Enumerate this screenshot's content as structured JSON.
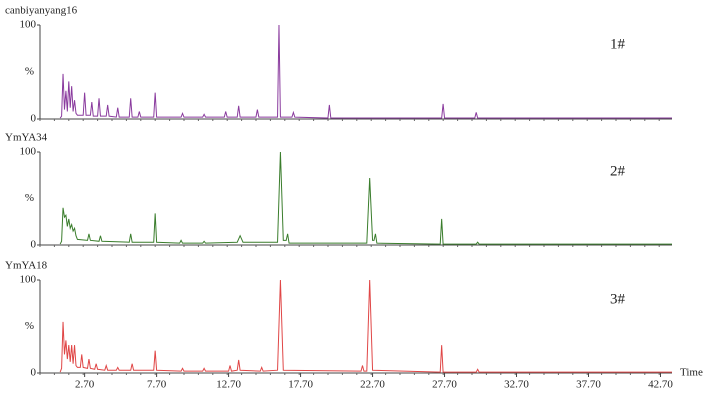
{
  "chart_data": [
    {
      "type": "line",
      "title": "canbiyanyang16",
      "label": "1#",
      "color": "#8a3b9e",
      "ylabel": "%",
      "xlim": [
        -0.4,
        43.5
      ],
      "ylim": [
        0,
        100
      ],
      "yticks": [
        0,
        100
      ],
      "x": [
        1.0,
        1.1,
        1.2,
        1.3,
        1.4,
        1.5,
        1.6,
        1.7,
        1.8,
        1.9,
        2.0,
        2.1,
        2.2,
        2.6,
        2.7,
        2.8,
        3.1,
        3.2,
        3.3,
        3.6,
        3.7,
        3.8,
        4.2,
        4.3,
        4.4,
        4.9,
        5.0,
        5.1,
        5.8,
        5.9,
        6.0,
        6.4,
        6.5,
        6.6,
        7.5,
        7.6,
        7.7,
        9.4,
        9.5,
        9.6,
        10.9,
        11.0,
        11.1,
        12.4,
        12.5,
        12.6,
        13.3,
        13.4,
        13.5,
        14.6,
        14.7,
        14.8,
        16.1,
        16.2,
        16.3,
        17.1,
        17.2,
        17.3,
        19.6,
        19.7,
        19.8,
        27.5,
        27.6,
        27.7,
        29.8,
        29.9,
        30.0,
        43.5
      ],
      "values": [
        1,
        3,
        48,
        10,
        30,
        8,
        40,
        12,
        35,
        8,
        20,
        6,
        4,
        4,
        28,
        4,
        4,
        18,
        3,
        3,
        22,
        3,
        3,
        15,
        3,
        2,
        12,
        2,
        2,
        22,
        2,
        2,
        8,
        2,
        2,
        28,
        2,
        2,
        6,
        2,
        2,
        5,
        2,
        2,
        8,
        2,
        2,
        14,
        2,
        2,
        10,
        2,
        2,
        100,
        2,
        2,
        7,
        2,
        1,
        15,
        1,
        1,
        16,
        1,
        1,
        7,
        1,
        1
      ]
    },
    {
      "type": "line",
      "title": "YmYA34",
      "label": "2#",
      "color": "#3a7d2c",
      "ylabel": "%",
      "xlim": [
        -0.4,
        43.5
      ],
      "ylim": [
        0,
        100
      ],
      "yticks": [
        0,
        100
      ],
      "x": [
        1.0,
        1.1,
        1.2,
        1.3,
        1.4,
        1.5,
        1.6,
        1.7,
        1.8,
        1.9,
        2.0,
        2.1,
        2.2,
        2.9,
        3.0,
        3.1,
        3.7,
        3.8,
        3.9,
        5.8,
        5.9,
        6.0,
        7.5,
        7.6,
        7.7,
        9.3,
        9.4,
        9.5,
        10.9,
        11.0,
        11.1,
        13.3,
        13.5,
        13.7,
        16.1,
        16.3,
        16.5,
        16.7,
        16.8,
        16.9,
        22.3,
        22.5,
        22.7,
        22.8,
        22.9,
        23.0,
        27.4,
        27.5,
        27.6,
        29.9,
        30.0,
        30.1,
        43.5
      ],
      "values": [
        1,
        4,
        40,
        30,
        32,
        20,
        28,
        18,
        22,
        15,
        18,
        10,
        6,
        5,
        12,
        5,
        4,
        10,
        4,
        3,
        12,
        3,
        3,
        34,
        3,
        2,
        5,
        2,
        2,
        4,
        2,
        3,
        10,
        3,
        3,
        100,
        5,
        5,
        12,
        2,
        2,
        72,
        5,
        5,
        12,
        2,
        1,
        28,
        1,
        1,
        3,
        1,
        1
      ]
    },
    {
      "type": "line",
      "title": "YmYA18",
      "label": "3#",
      "color": "#e04646",
      "ylabel": "%",
      "xlim": [
        -0.4,
        43.5
      ],
      "ylim": [
        0,
        100
      ],
      "yticks": [
        0,
        100
      ],
      "xlabel": "Time",
      "xticks": [
        {
          "value": 2.7,
          "label": "2.70"
        },
        {
          "value": 7.7,
          "label": "7.70"
        },
        {
          "value": 12.7,
          "label": "12.70"
        },
        {
          "value": 17.7,
          "label": "17.70"
        },
        {
          "value": 22.7,
          "label": "22.70"
        },
        {
          "value": 27.7,
          "label": "27.70"
        },
        {
          "value": 32.7,
          "label": "32.70"
        },
        {
          "value": 37.7,
          "label": "37.70"
        },
        {
          "value": 42.7,
          "label": "42.70"
        }
      ],
      "x": [
        1.0,
        1.1,
        1.2,
        1.3,
        1.4,
        1.5,
        1.6,
        1.7,
        1.8,
        1.9,
        2.0,
        2.1,
        2.2,
        2.4,
        2.5,
        2.6,
        2.9,
        3.0,
        3.1,
        3.4,
        3.5,
        3.6,
        4.1,
        4.2,
        4.3,
        4.9,
        5.0,
        5.1,
        5.9,
        6.0,
        6.1,
        7.5,
        7.6,
        7.7,
        9.4,
        9.5,
        9.6,
        10.9,
        11.0,
        11.1,
        12.7,
        12.8,
        12.9,
        13.3,
        13.4,
        13.5,
        14.9,
        15.0,
        15.1,
        16.1,
        16.3,
        16.5,
        21.9,
        22.0,
        22.1,
        22.3,
        22.5,
        22.7,
        27.4,
        27.5,
        27.6,
        29.9,
        30.0,
        30.1,
        43.5
      ],
      "values": [
        1,
        5,
        55,
        20,
        35,
        15,
        30,
        12,
        30,
        10,
        30,
        8,
        6,
        6,
        20,
        6,
        5,
        15,
        5,
        4,
        10,
        4,
        3,
        8,
        3,
        3,
        6,
        3,
        3,
        10,
        3,
        3,
        24,
        3,
        2,
        5,
        2,
        2,
        5,
        2,
        2,
        8,
        2,
        3,
        14,
        3,
        2,
        6,
        2,
        3,
        100,
        3,
        2,
        8,
        2,
        2,
        100,
        3,
        1,
        30,
        1,
        1,
        4,
        1,
        1
      ]
    }
  ]
}
